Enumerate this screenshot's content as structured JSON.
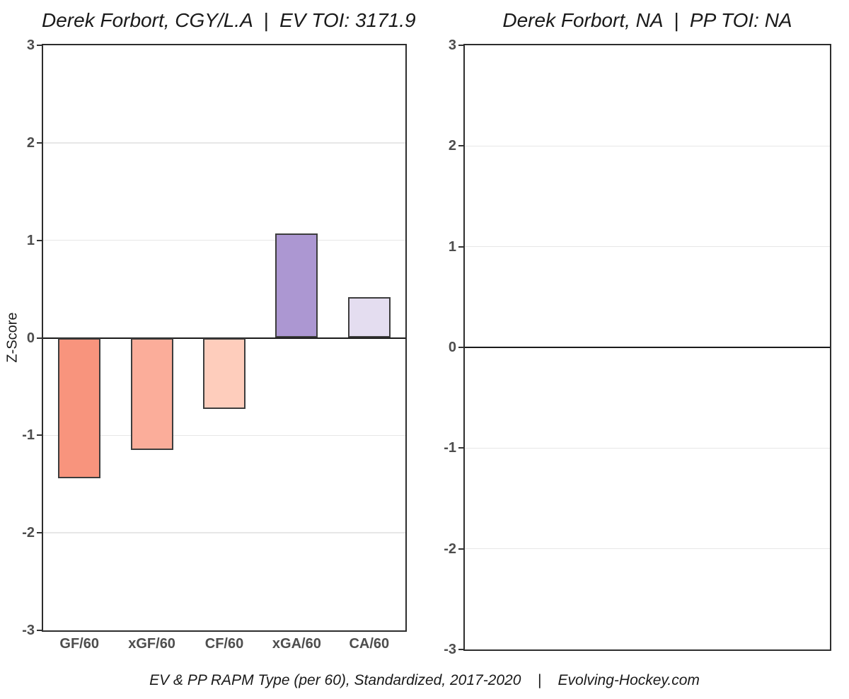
{
  "titles": {
    "left": "Derek Forbort, CGY/L.A  |  EV TOI: 3171.9",
    "right": "Derek Forbort, NA  |  PP TOI: NA"
  },
  "caption": "EV & PP RAPM Type (per 60), Standardized, 2017-2020    |    Evolving-Hockey.com",
  "y_axis_label": "Z-Score",
  "colors": {
    "frame": "#2d2d2d",
    "grid": "#e7e7e7",
    "zero_line": "#1a1a1a",
    "bar_border": "#3d3d3d",
    "tick_label": "#4d4d4d",
    "title_text": "#1a1a1a",
    "background": "#ffffff"
  },
  "chart_data": [
    {
      "type": "bar",
      "title": "Derek Forbort, CGY/L.A  |  EV TOI: 3171.9",
      "categories": [
        "GF/60",
        "xGF/60",
        "CF/60",
        "xGA/60",
        "CA/60"
      ],
      "values": [
        -1.44,
        -1.15,
        -0.73,
        1.07,
        0.42
      ],
      "bar_colors": [
        "#f8947d",
        "#fbad9a",
        "#fecdbc",
        "#ac97d2",
        "#e4ddf0"
      ],
      "xlabel": "",
      "ylabel": "Z-Score",
      "ylim": [
        -3,
        3
      ],
      "yticks": [
        3,
        2,
        1,
        0,
        -1,
        -2,
        -3
      ],
      "grid": "horizontal-major-light",
      "zero_line": true,
      "legend": "none"
    },
    {
      "type": "bar",
      "title": "Derek Forbort, NA  |  PP TOI: NA",
      "categories": [],
      "values": [],
      "bar_colors": [],
      "xlabel": "",
      "ylabel": "",
      "ylim": [
        -3,
        3
      ],
      "yticks": [
        3,
        2,
        1,
        0,
        -1,
        -2,
        -3
      ],
      "grid": "horizontal-major-light",
      "zero_line": true,
      "legend": "none",
      "note": "empty panel - no PP data"
    }
  ]
}
